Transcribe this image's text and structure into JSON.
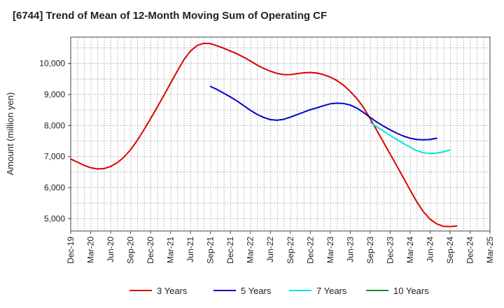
{
  "chart_data": {
    "type": "line",
    "title": "[6744]  Trend of Mean of 12-Month Moving Sum of Operating CF",
    "xlabel": "",
    "ylabel": "Amount (million yen)",
    "ylim": [
      4600,
      10850
    ],
    "yticks": [
      5000,
      6000,
      7000,
      8000,
      9000,
      10000
    ],
    "ytick_labels": [
      "5,000",
      "6,000",
      "7,000",
      "8,000",
      "9,000",
      "10,000"
    ],
    "x_start": "Dec-19",
    "x_months": 63,
    "xtick_labels": [
      "Dec-19",
      "Mar-20",
      "Jun-20",
      "Sep-20",
      "Dec-20",
      "Mar-21",
      "Jun-21",
      "Sep-21",
      "Dec-21",
      "Mar-22",
      "Jun-22",
      "Sep-22",
      "Dec-22",
      "Mar-23",
      "Jun-23",
      "Sep-23",
      "Dec-23",
      "Mar-24",
      "Jun-24",
      "Sep-24",
      "Dec-24",
      "Mar-25"
    ],
    "grid": true,
    "legend_position": "bottom",
    "series": [
      {
        "name": "3 Years",
        "color": "#dd0000",
        "start_index": 0,
        "values": [
          6920,
          6820,
          6720,
          6640,
          6600,
          6610,
          6680,
          6800,
          6980,
          7220,
          7520,
          7860,
          8220,
          8590,
          8970,
          9360,
          9750,
          10120,
          10400,
          10580,
          10650,
          10640,
          10570,
          10490,
          10400,
          10310,
          10200,
          10080,
          9950,
          9840,
          9750,
          9680,
          9640,
          9640,
          9670,
          9700,
          9710,
          9690,
          9640,
          9560,
          9450,
          9300,
          9100,
          8870,
          8580,
          8220,
          7840,
          7460,
          7080,
          6700,
          6310,
          5920,
          5540,
          5220,
          4980,
          4830,
          4750,
          4740,
          4760
        ]
      },
      {
        "name": "5 Years",
        "color": "#0000cc",
        "start_index": 21,
        "values": [
          9260,
          9160,
          9040,
          8920,
          8790,
          8640,
          8490,
          8360,
          8260,
          8190,
          8170,
          8200,
          8270,
          8350,
          8430,
          8510,
          8570,
          8640,
          8700,
          8720,
          8710,
          8660,
          8560,
          8420,
          8260,
          8110,
          7980,
          7860,
          7750,
          7660,
          7590,
          7550,
          7540,
          7550,
          7590
        ]
      },
      {
        "name": "7 Years",
        "color": "#00e5e5",
        "start_index": 45,
        "values": [
          8100,
          7960,
          7820,
          7680,
          7550,
          7420,
          7300,
          7190,
          7120,
          7100,
          7110,
          7150,
          7210
        ]
      },
      {
        "name": "10 Years",
        "color": "#228b22",
        "start_index": 0,
        "values": []
      }
    ]
  }
}
